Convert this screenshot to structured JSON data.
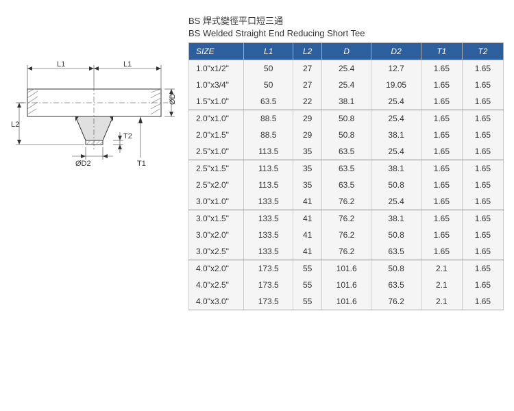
{
  "title": {
    "chinese": "BS 焊式變徑平口短三通",
    "english": "BS Welded Straight End Reducing Short Tee"
  },
  "diagram": {
    "labels": {
      "L1_left": "L1",
      "L1_right": "L1",
      "L2": "L2",
      "D": "ØD",
      "D2": "ØD2",
      "T1": "T1",
      "T2": "T2"
    },
    "colors": {
      "line": "#333333",
      "fill": "#e0e0e0",
      "hatch": "#999999"
    }
  },
  "table": {
    "columns": [
      "SIZE",
      "L1",
      "L2",
      "D",
      "D2",
      "T1",
      "T2"
    ],
    "header_bg": "#2d5f9f",
    "header_color": "#ffffff",
    "cell_bg": "#f5f5f5",
    "border_color": "#aaaaaa",
    "group_divider_color": "#888888",
    "groups": [
      [
        {
          "size": "1.0\"x1/2\"",
          "L1": "50",
          "L2": "27",
          "D": "25.4",
          "D2": "12.7",
          "T1": "1.65",
          "T2": "1.65"
        },
        {
          "size": "1.0\"x3/4\"",
          "L1": "50",
          "L2": "27",
          "D": "25.4",
          "D2": "19.05",
          "T1": "1.65",
          "T2": "1.65"
        },
        {
          "size": "1.5\"x1.0\"",
          "L1": "63.5",
          "L2": "22",
          "D": "38.1",
          "D2": "25.4",
          "T1": "1.65",
          "T2": "1.65"
        }
      ],
      [
        {
          "size": "2.0\"x1.0\"",
          "L1": "88.5",
          "L2": "29",
          "D": "50.8",
          "D2": "25.4",
          "T1": "1.65",
          "T2": "1.65"
        },
        {
          "size": "2.0\"x1.5\"",
          "L1": "88.5",
          "L2": "29",
          "D": "50.8",
          "D2": "38.1",
          "T1": "1.65",
          "T2": "1.65"
        },
        {
          "size": "2.5\"x1.0\"",
          "L1": "113.5",
          "L2": "35",
          "D": "63.5",
          "D2": "25.4",
          "T1": "1.65",
          "T2": "1.65"
        }
      ],
      [
        {
          "size": "2.5\"x1.5\"",
          "L1": "113.5",
          "L2": "35",
          "D": "63.5",
          "D2": "38.1",
          "T1": "1.65",
          "T2": "1.65"
        },
        {
          "size": "2.5\"x2.0\"",
          "L1": "113.5",
          "L2": "35",
          "D": "63.5",
          "D2": "50.8",
          "T1": "1.65",
          "T2": "1.65"
        },
        {
          "size": "3.0\"x1.0\"",
          "L1": "133.5",
          "L2": "41",
          "D": "76.2",
          "D2": "25.4",
          "T1": "1.65",
          "T2": "1.65"
        }
      ],
      [
        {
          "size": "3.0\"x1.5\"",
          "L1": "133.5",
          "L2": "41",
          "D": "76.2",
          "D2": "38.1",
          "T1": "1.65",
          "T2": "1.65"
        },
        {
          "size": "3.0\"x2.0\"",
          "L1": "133.5",
          "L2": "41",
          "D": "76.2",
          "D2": "50.8",
          "T1": "1.65",
          "T2": "1.65"
        },
        {
          "size": "3.0\"x2.5\"",
          "L1": "133.5",
          "L2": "41",
          "D": "76.2",
          "D2": "63.5",
          "T1": "1.65",
          "T2": "1.65"
        }
      ],
      [
        {
          "size": "4.0\"x2.0\"",
          "L1": "173.5",
          "L2": "55",
          "D": "101.6",
          "D2": "50.8",
          "T1": "2.1",
          "T2": "1.65"
        },
        {
          "size": "4.0\"x2.5\"",
          "L1": "173.5",
          "L2": "55",
          "D": "101.6",
          "D2": "63.5",
          "T1": "2.1",
          "T2": "1.65"
        },
        {
          "size": "4.0\"x3.0\"",
          "L1": "173.5",
          "L2": "55",
          "D": "101.6",
          "D2": "76.2",
          "T1": "2.1",
          "T2": "1.65"
        }
      ]
    ]
  }
}
